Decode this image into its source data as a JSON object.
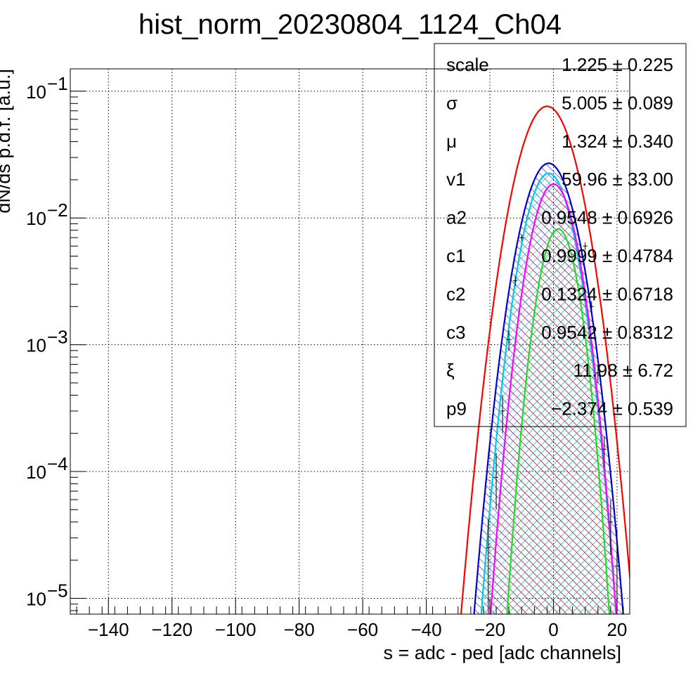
{
  "chart_data": {
    "type": "histogram-fit",
    "title": "hist_norm_20230804_1124_Ch04",
    "xlabel": "s = adc - ped [adc channels]",
    "ylabel": "dN/ds p.d.f. [a.u.]",
    "xlim": [
      -152,
      24
    ],
    "ylim": [
      7.5e-06,
      0.15
    ],
    "yscale": "log",
    "grid": true,
    "x_ticks": [
      -140,
      -120,
      -100,
      -80,
      -60,
      -40,
      -20,
      0,
      20
    ],
    "x_tick_labels": [
      "−140",
      "−120",
      "−100",
      "−80",
      "−60",
      "−40",
      "−20",
      "0",
      "20"
    ],
    "y_ticks": [
      {
        "value": 1e-05,
        "mantissa": "10",
        "exponent": "−5"
      },
      {
        "value": 0.0001,
        "mantissa": "10",
        "exponent": "−4"
      },
      {
        "value": 0.001,
        "mantissa": "10",
        "exponent": "−3"
      },
      {
        "value": 0.01,
        "mantissa": "10",
        "exponent": "−2"
      },
      {
        "value": 0.1,
        "mantissa": "10",
        "exponent": "−1"
      }
    ],
    "stats_box": {
      "placement": "top-right",
      "rows": [
        {
          "name": "scale",
          "value": "1.225 ± 0.225"
        },
        {
          "name": "σ",
          "value": "5.005 ± 0.089"
        },
        {
          "name": "μ",
          "value": "1.324 ± 0.340"
        },
        {
          "name": "v1",
          "value": "59.96 ± 33.00"
        },
        {
          "name": "a2",
          "value": "0.9548 ± 0.6926"
        },
        {
          "name": "c1",
          "value": "0.9999 ± 0.4784"
        },
        {
          "name": "c2",
          "value": "0.1324 ± 0.6718"
        },
        {
          "name": "c3",
          "value": "0.9542 ± 0.8312"
        },
        {
          "name": "ξ",
          "value": "11.98 ± 6.72"
        },
        {
          "name": "p9",
          "value": "−2.374 ± 0.539"
        }
      ]
    },
    "series": [
      {
        "color": "#ff0000",
        "peak_x": -2,
        "peak_y": 0.076,
        "sigma": 6.3,
        "hatch": "none"
      },
      {
        "color": "#0000cc",
        "peak_x": -1.5,
        "peak_y": 0.027,
        "sigma": 5.8,
        "hatch": "#0000cc"
      },
      {
        "color": "#00ccdd",
        "peak_x": -1.5,
        "peak_y": 0.0225,
        "sigma": 5.3,
        "hatch": "#00aacc"
      },
      {
        "color": "#ff00ff",
        "peak_x": 0,
        "peak_y": 0.0185,
        "sigma": 5.0,
        "hatch": "#cc0044"
      },
      {
        "color": "#22dd22",
        "peak_x": 1.5,
        "peak_y": 0.0082,
        "sigma": 4.3,
        "hatch": "#22bb55"
      }
    ],
    "data_points": [
      {
        "x": -20.5,
        "y": 2.5e-05,
        "ylo": 7.5e-06,
        "yhi": 4.2e-05
      },
      {
        "x": -18,
        "y": 9e-05,
        "ylo": 5e-05,
        "yhi": 0.00014
      },
      {
        "x": -16,
        "y": 0.0003,
        "ylo": 0.0002,
        "yhi": 0.0004
      },
      {
        "x": -14,
        "y": 0.0011,
        "ylo": 0.0009,
        "yhi": 0.0013
      },
      {
        "x": -12,
        "y": 0.0032,
        "ylo": 0.0029,
        "yhi": 0.0035
      },
      {
        "x": -10,
        "y": 0.007,
        "ylo": 0.0066,
        "yhi": 0.0074
      },
      {
        "x": 10,
        "y": 0.006,
        "ylo": 0.0056,
        "yhi": 0.0064
      },
      {
        "x": 12,
        "y": 0.002,
        "ylo": 0.0018,
        "yhi": 0.0022
      },
      {
        "x": 14,
        "y": 0.0006,
        "ylo": 0.0005,
        "yhi": 0.0007
      },
      {
        "x": 16,
        "y": 0.00015,
        "ylo": 0.00011,
        "yhi": 0.00019
      },
      {
        "x": 18,
        "y": 4e-05,
        "ylo": 2.2e-05,
        "yhi": 6e-05
      },
      {
        "x": 20,
        "y": 1.8e-05,
        "ylo": 7.5e-06,
        "yhi": 3.5e-05
      }
    ]
  }
}
